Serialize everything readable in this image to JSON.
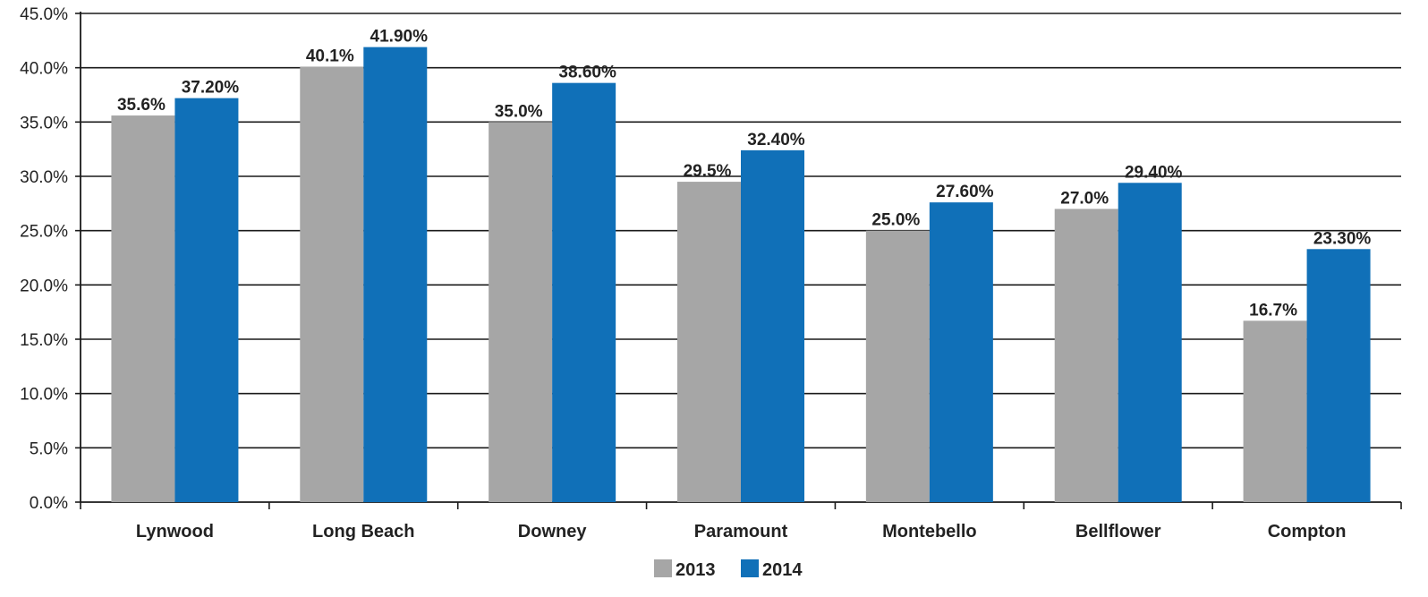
{
  "chart_data": {
    "type": "bar",
    "title": "",
    "xlabel": "",
    "ylabel": "",
    "categories": [
      "Lynwood",
      "Long Beach",
      "Downey",
      "Paramount",
      "Montebello",
      "Bellflower",
      "Compton"
    ],
    "series": [
      {
        "name": "2013",
        "color": "#a6a6a6",
        "values": [
          35.6,
          40.1,
          35.0,
          29.5,
          25.0,
          27.0,
          16.7
        ],
        "labels": [
          "35.6%",
          "40.1%",
          "35.0%",
          "29.5%",
          "25.0%",
          "27.0%",
          "16.7%"
        ]
      },
      {
        "name": "2014",
        "color": "#1070b8",
        "values": [
          37.2,
          41.9,
          38.6,
          32.4,
          27.6,
          29.4,
          23.3
        ],
        "labels": [
          "37.20%",
          "41.90%",
          "38.60%",
          "32.40%",
          "27.60%",
          "29.40%",
          "23.30%"
        ]
      }
    ],
    "ylim": [
      0,
      45
    ],
    "yticks": [
      0,
      5,
      10,
      15,
      20,
      25,
      30,
      35,
      40,
      45
    ],
    "ytick_labels": [
      "0.0%",
      "5.0%",
      "10.0%",
      "15.0%",
      "20.0%",
      "25.0%",
      "30.0%",
      "35.0%",
      "40.0%",
      "45.0%"
    ],
    "grid": true,
    "legend_position": "bottom-center"
  }
}
